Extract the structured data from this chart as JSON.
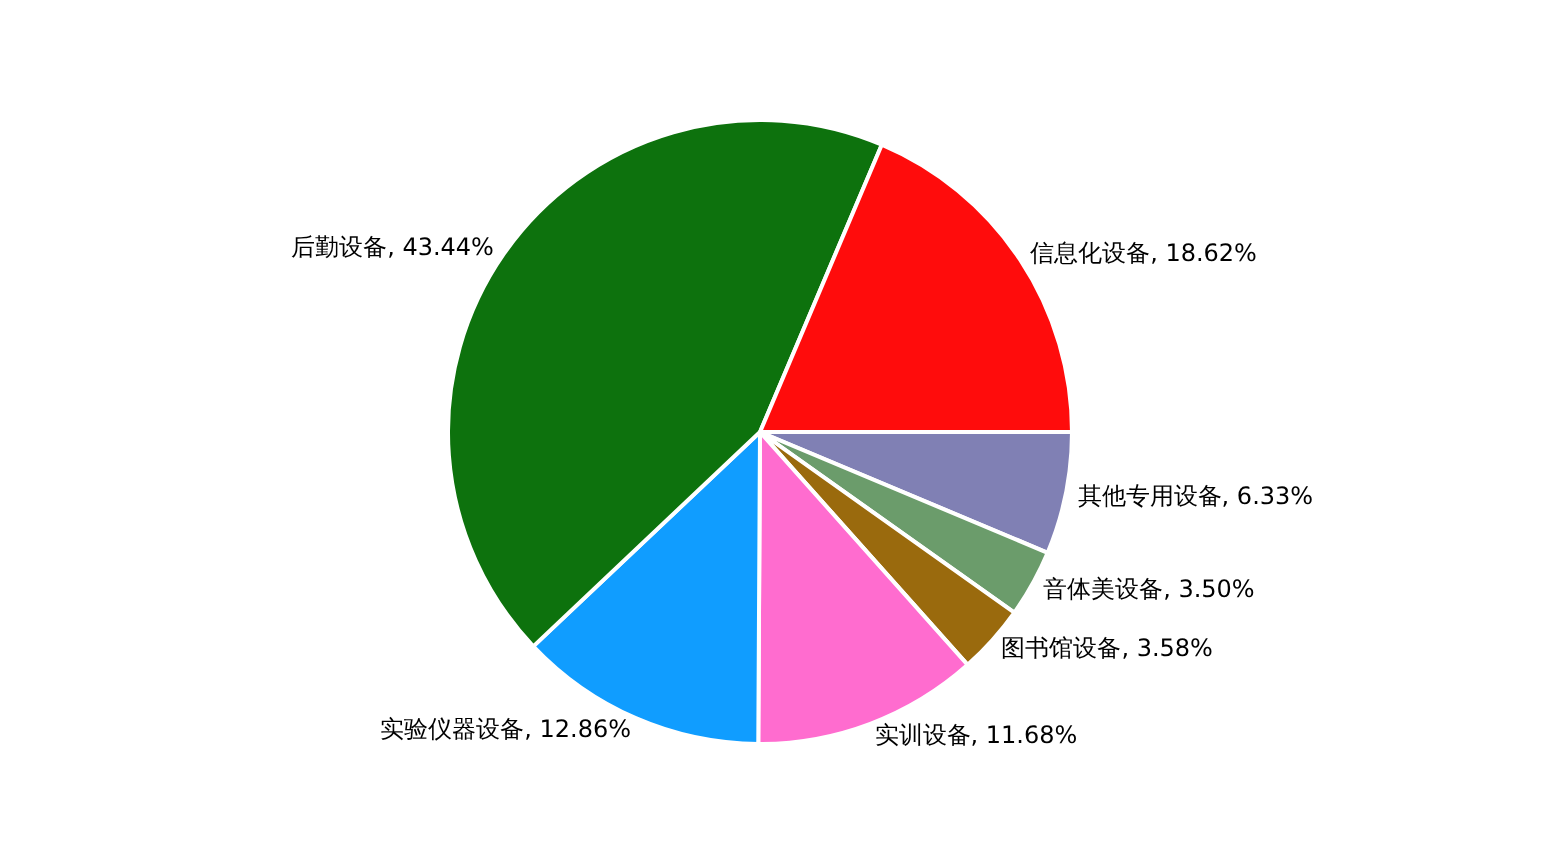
{
  "chart_data": {
    "type": "pie",
    "categories": [
      "其他专用设备",
      "音体美设备",
      "图书馆设备",
      "实训设备",
      "实验仪器设备",
      "后勤设备",
      "信息化设备"
    ],
    "values": [
      6.33,
      3.5,
      3.58,
      11.68,
      12.86,
      43.44,
      18.62
    ],
    "value_labels": [
      "6.33%",
      "3.50%",
      "3.58%",
      "11.68%",
      "12.86%",
      "43.44%",
      "18.62%"
    ],
    "colors": [
      "#8080b4",
      "#6b9c6b",
      "#9a6a0d",
      "#ff6ccf",
      "#109dff",
      "#0d720d",
      "#ff0c0c"
    ]
  }
}
